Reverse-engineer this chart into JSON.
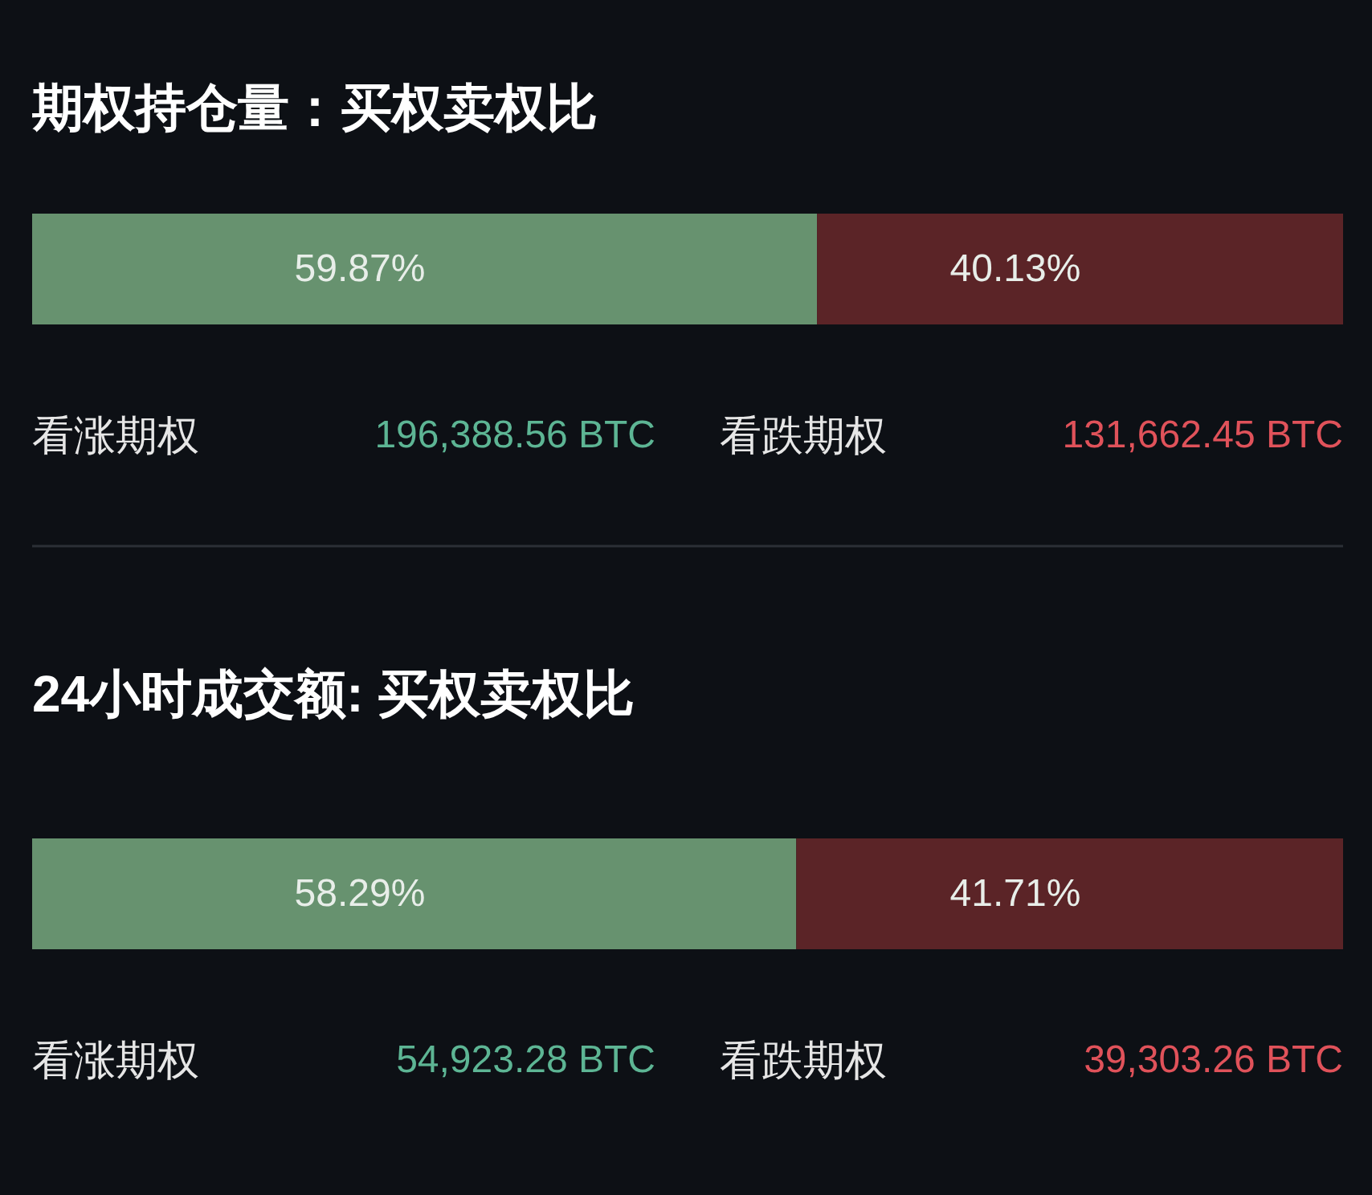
{
  "chart_data": [
    {
      "type": "bar",
      "title": "期权持仓量：买权卖权比",
      "orientation": "horizontal",
      "stacked": true,
      "categories": [
        null
      ],
      "xlim": [
        0,
        100
      ],
      "tick_labels": false,
      "data_labels": true,
      "series": [
        {
          "color": "#67926f",
          "values": [
            59.87
          ],
          "value_labels": [
            "59.87%"
          ]
        },
        {
          "color": "#5b2427",
          "values": [
            40.13
          ],
          "value_labels": [
            "40.13%"
          ]
        }
      ],
      "annotations": [
        "看涨期权",
        "196,388.56 BTC",
        "看跌期权",
        "131,662.45 BTC"
      ]
    },
    {
      "type": "bar",
      "title": "24小时成交额: 买权卖权比",
      "orientation": "horizontal",
      "stacked": true,
      "categories": [
        null
      ],
      "xlim": [
        0,
        100
      ],
      "tick_labels": false,
      "data_labels": true,
      "series": [
        {
          "color": "#67926f",
          "values": [
            58.29
          ],
          "value_labels": [
            "58.29%"
          ]
        },
        {
          "color": "#5b2427",
          "values": [
            41.71
          ],
          "value_labels": [
            "41.71%"
          ]
        }
      ],
      "annotations": [
        "看涨期权",
        "54,923.28 BTC",
        "看跌期权",
        "39,303.26 BTC"
      ]
    }
  ]
}
